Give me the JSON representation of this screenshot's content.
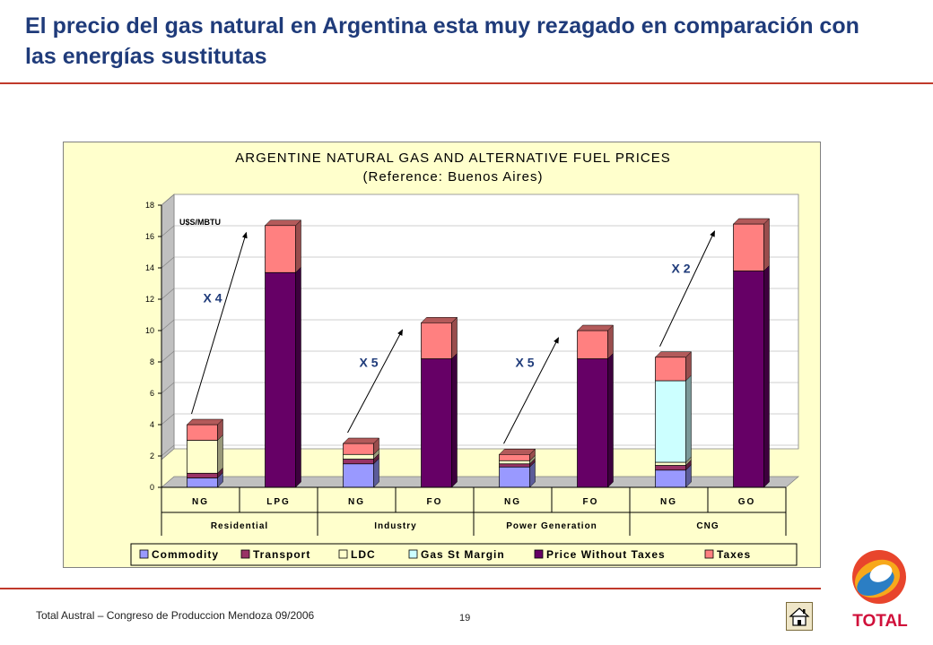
{
  "slide": {
    "title": "El precio del gas natural en Argentina esta muy rezagado en comparación con las energías sustitutas",
    "footer": "Total Austral – Congreso de Produccion Mendoza 09/2006",
    "page_number": "19",
    "logo_text": "TOTAL"
  },
  "colors": {
    "title": "#1f3b7a",
    "rule": "#c0392b",
    "chart_bg": "#ffffcc",
    "commodity": "#9999ff",
    "transport": "#993366",
    "ldc": "#ffffcc",
    "gas_st_margin": "#ccffff",
    "price_without_taxes": "#660066",
    "taxes": "#ff8080"
  },
  "chart_data": {
    "type": "bar",
    "stacked": true,
    "title": "ARGENTINE NATURAL GAS AND ALTERNATIVE FUEL PRICES",
    "subtitle": "(Reference: Buenos Aires)",
    "unit_label": "U$S/MBTU",
    "ylim": [
      0,
      18
    ],
    "yticks": [
      0,
      2,
      4,
      6,
      8,
      10,
      12,
      14,
      16,
      18
    ],
    "legend_position": "bottom",
    "categories": [
      "NG",
      "LPG",
      "NG",
      "FO",
      "NG",
      "FO",
      "NG",
      "GO"
    ],
    "groups": [
      {
        "label": "Residential",
        "categories": [
          0,
          1
        ]
      },
      {
        "label": "Industry",
        "categories": [
          2,
          3
        ]
      },
      {
        "label": "Power Generation",
        "categories": [
          4,
          5
        ]
      },
      {
        "label": "CNG",
        "categories": [
          6,
          7
        ]
      }
    ],
    "series": [
      {
        "name": "Commodity",
        "color": "#9999ff",
        "values": [
          0.6,
          0,
          1.5,
          0,
          1.3,
          0,
          1.1,
          0
        ]
      },
      {
        "name": "Transport",
        "color": "#993366",
        "values": [
          0.3,
          0,
          0.3,
          0,
          0.2,
          0,
          0.3,
          0
        ]
      },
      {
        "name": "LDC",
        "color": "#ffffcc",
        "values": [
          2.1,
          0,
          0.3,
          0,
          0.2,
          0,
          0.2,
          0
        ]
      },
      {
        "name": "Gas St Margin",
        "color": "#ccffff",
        "values": [
          0,
          0,
          0,
          0,
          0,
          0,
          5.2,
          0
        ]
      },
      {
        "name": "Price Without Taxes",
        "color": "#660066",
        "values": [
          0,
          13.7,
          0,
          8.2,
          0,
          8.2,
          0,
          13.8
        ]
      },
      {
        "name": "Taxes",
        "color": "#ff8080",
        "values": [
          1.0,
          3.0,
          0.7,
          2.3,
          0.4,
          1.8,
          1.5,
          3.0
        ]
      }
    ],
    "annotations": [
      {
        "text": "X 4",
        "from": 0,
        "to": 1,
        "label_value": 11.8
      },
      {
        "text": "X 5",
        "from": 2,
        "to": 3,
        "label_value": 7.7
      },
      {
        "text": "X 5",
        "from": 4,
        "to": 5,
        "label_value": 7.7
      },
      {
        "text": "X 2",
        "from": 6,
        "to": 7,
        "label_value": 13.7
      }
    ]
  }
}
